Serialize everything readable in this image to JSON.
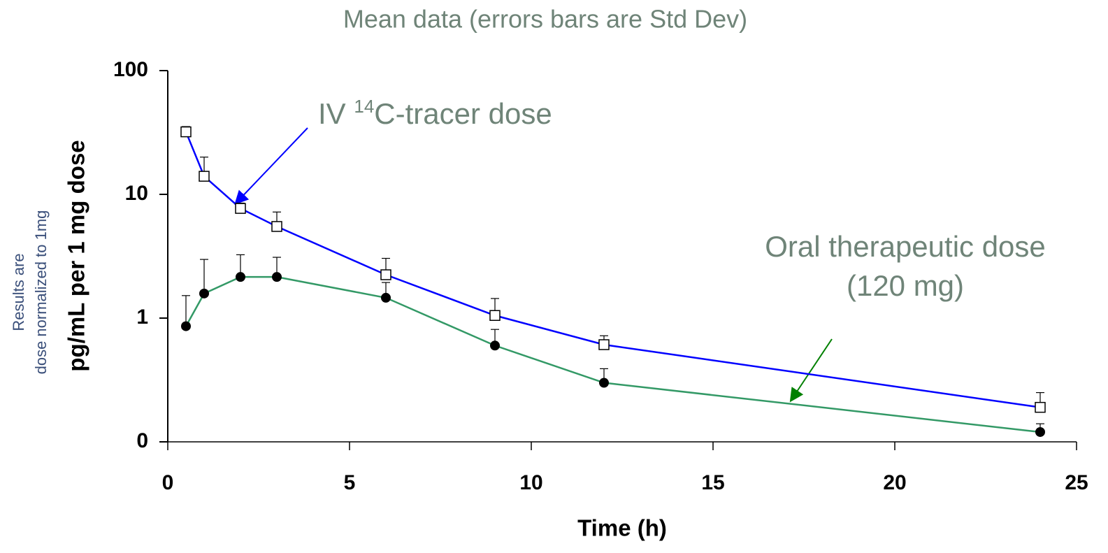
{
  "chart_data": {
    "type": "line",
    "title": "Mean data (errors bars are Std Dev)",
    "x_label": "Time (h)",
    "y_label": "pg/mL per 1 mg dose",
    "y_note": [
      "Results are",
      "dose normalized to 1mg"
    ],
    "annotations": {
      "iv": [
        "IV ",
        "14",
        "C-tracer dose"
      ],
      "oral": [
        "Oral therapeutic dose",
        "(120 mg)"
      ]
    },
    "y_log": true,
    "xlim": [
      0,
      25
    ],
    "xticks": [
      0,
      5,
      10,
      15,
      20,
      25
    ],
    "ylim": [
      0.1,
      100
    ],
    "yticks": [
      100,
      10,
      1,
      {
        "value": 0.1,
        "label": "0"
      }
    ],
    "x": [
      0.5,
      1,
      2,
      3,
      6,
      9,
      12,
      24
    ],
    "series": [
      {
        "name": "IV 14C-tracer dose",
        "color": "#0000ff",
        "marker": "square",
        "values": [
          32,
          14,
          7.7,
          5.5,
          2.24,
          1.05,
          0.61,
          0.19
        ],
        "errors": [
          3.3,
          6,
          0.8,
          1.7,
          0.8,
          0.39,
          0.11,
          0.06
        ]
      },
      {
        "name": "Oral therapeutic dose (120 mg)",
        "color": "#339966",
        "marker": "circle",
        "values": [
          0.86,
          1.58,
          2.15,
          2.15,
          1.46,
          0.6,
          0.3,
          0.12
        ],
        "errors": [
          0.66,
          1.4,
          1.1,
          0.95,
          0.48,
          0.21,
          0.09,
          0.02
        ]
      }
    ]
  }
}
